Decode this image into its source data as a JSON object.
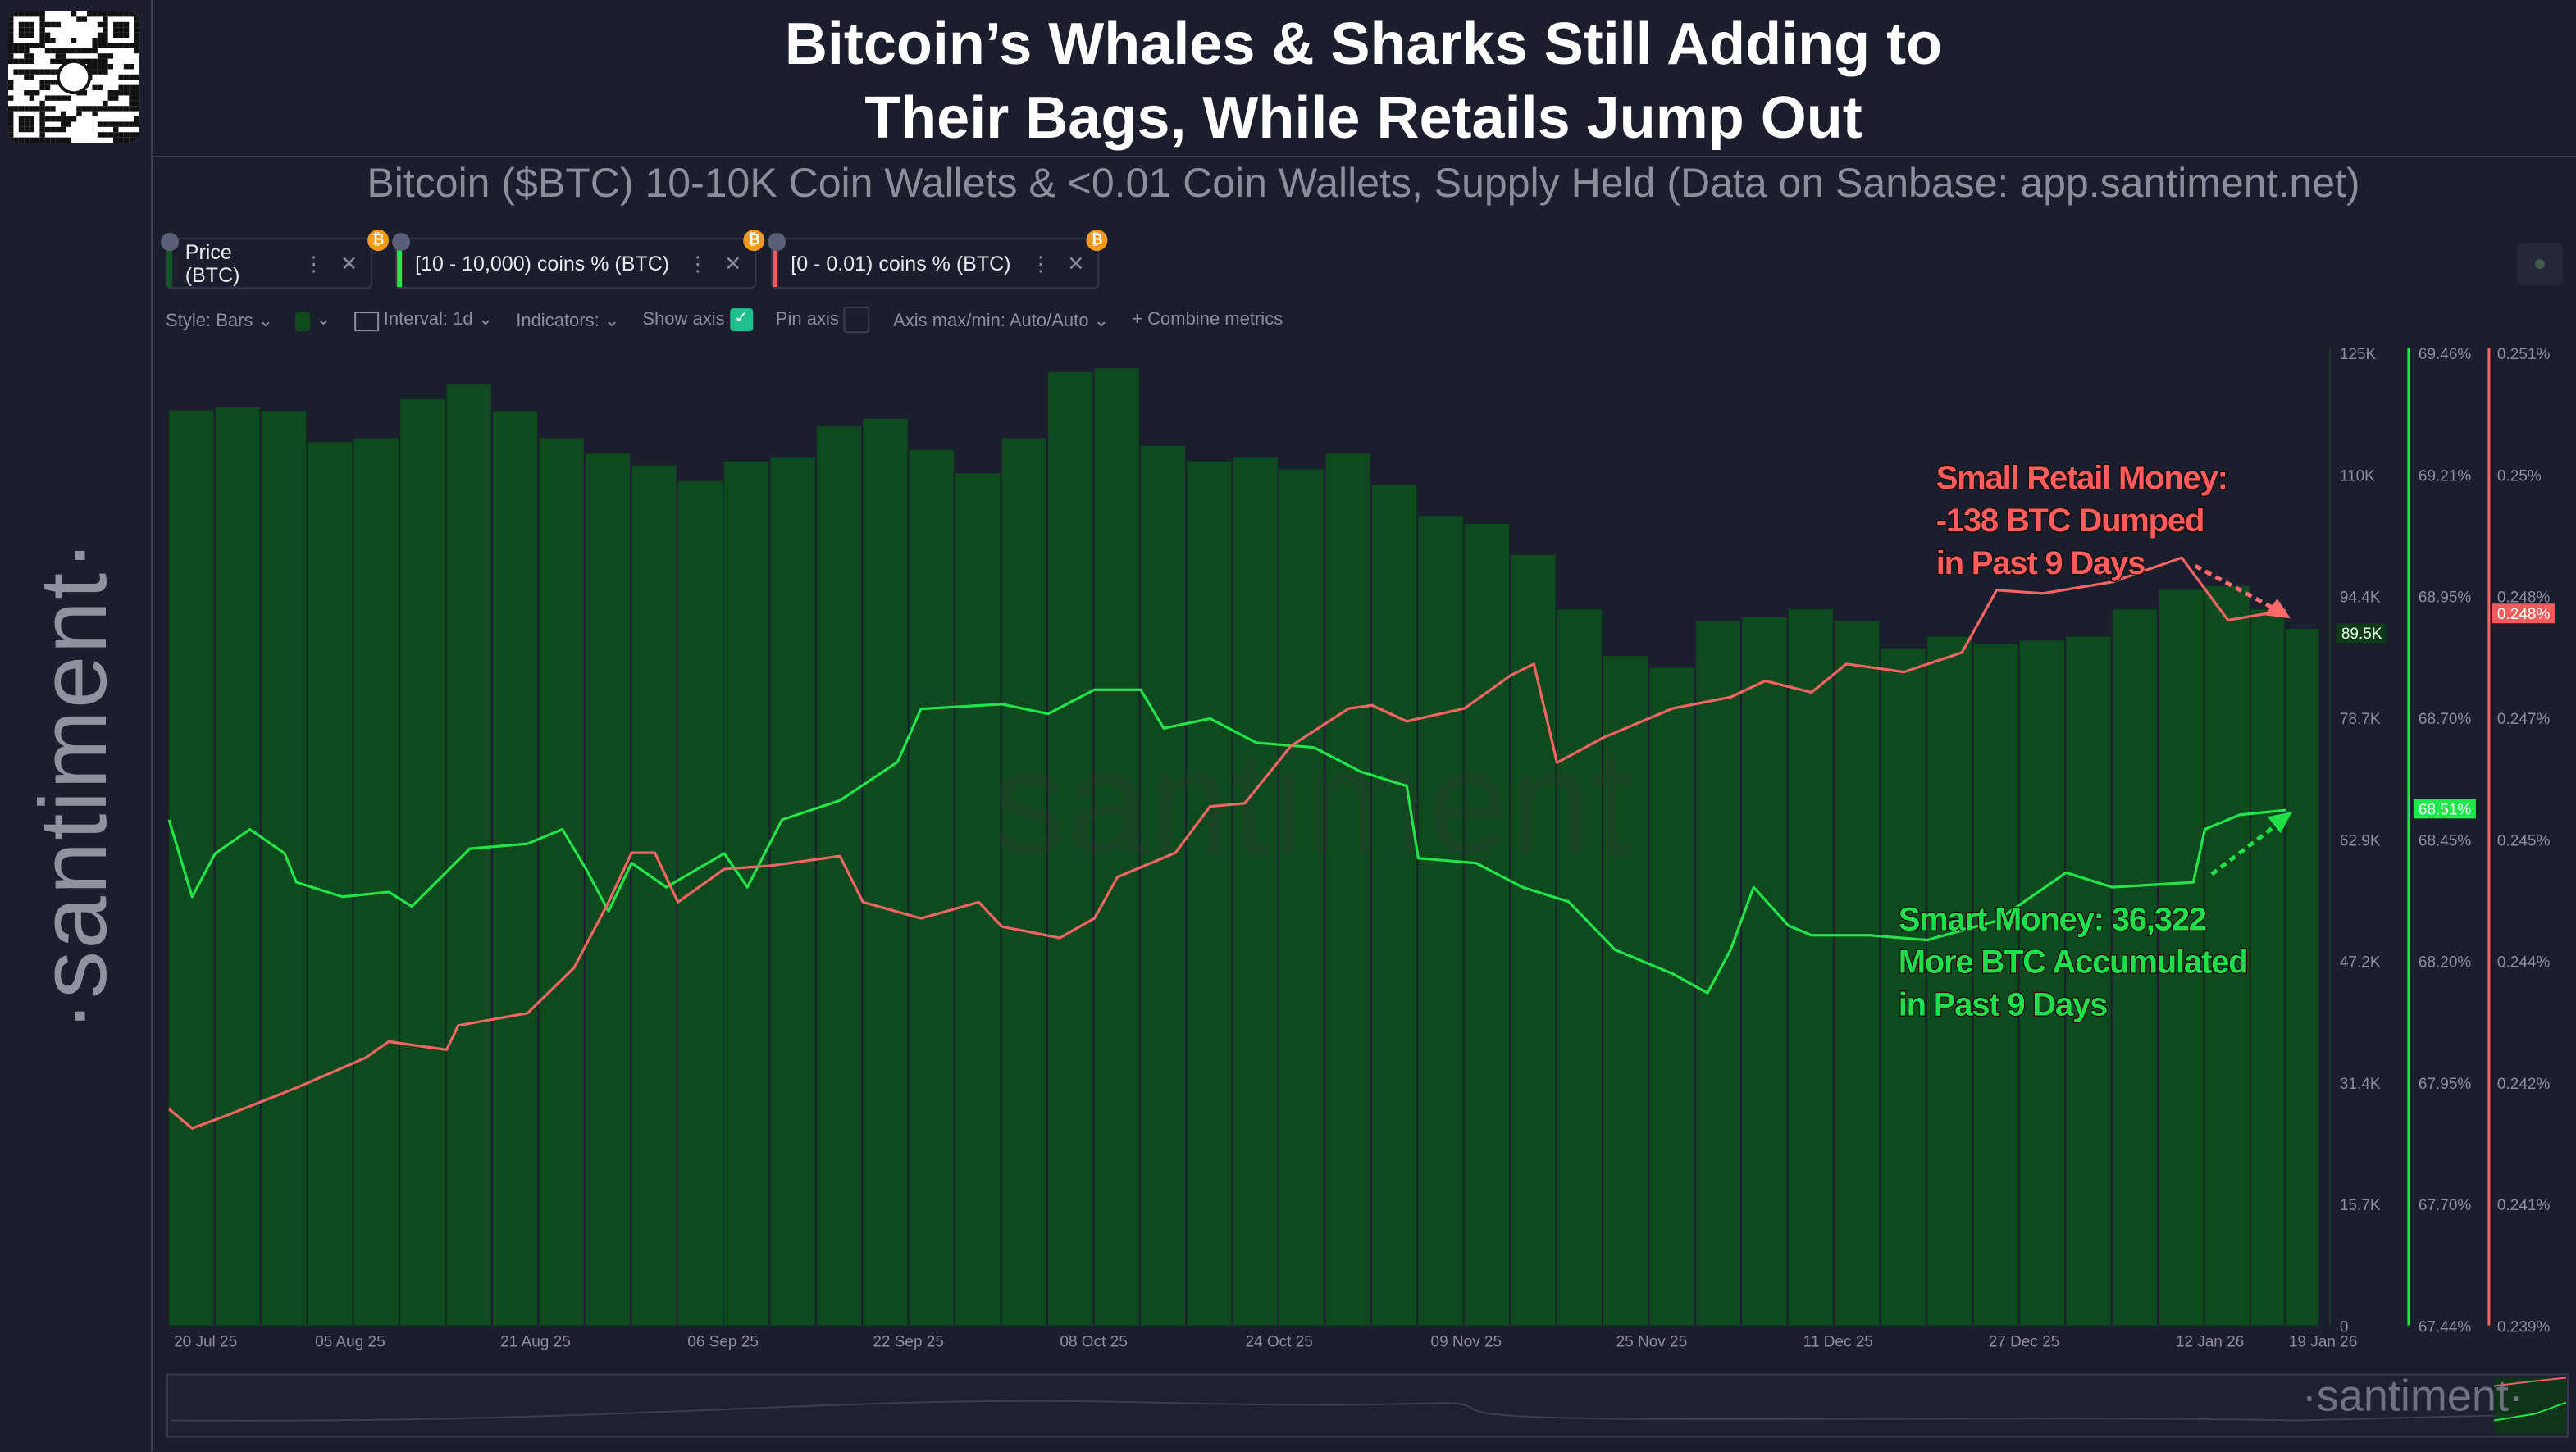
{
  "title_lines": [
    "Bitcoin’s Whales & Sharks Still Adding to",
    "Their Bags, While Retails Jump Out"
  ],
  "subtitle": "Bitcoin ($BTC) 10-10K Coin Wallets & <0.01 Coin Wallets, Supply Held (Data on Sanbase: app.santiment.net)",
  "brand_vertical": "·santiment·",
  "watermark": "·santiment·",
  "metrics": [
    {
      "label": "Price (BTC)",
      "color": "#0f5a22",
      "icon": "bitcoin-icon"
    },
    {
      "label": "[10 - 10,000) coins % (BTC)",
      "color": "#1ee84a",
      "icon": "bitcoin-icon"
    },
    {
      "label": "[0 - 0.01) coins % (BTC)",
      "color": "#f25b5b",
      "icon": "bitcoin-icon"
    }
  ],
  "toolbar": {
    "style": "Style: Bars",
    "interval": "Interval: 1d",
    "indicators": "Indicators:",
    "show_axis": "Show axis",
    "show_axis_checked": true,
    "pin_axis": "Pin axis",
    "pin_axis_checked": false,
    "axis_maxmin": "Axis max/min: Auto/Auto",
    "combine": "Combine metrics"
  },
  "colors": {
    "background": "#1b1e2c",
    "price_bars": "#0e4a1d",
    "whales": "#22e34c",
    "retail": "#f26565"
  },
  "chart_data": {
    "type": "bar+line",
    "x_tick_labels": [
      "20 Jul 25",
      "05 Aug 25",
      "21 Aug 25",
      "06 Sep 25",
      "22 Sep 25",
      "08 Oct 25",
      "24 Oct 25",
      "09 Nov 25",
      "25 Nov 25",
      "11 Dec 25",
      "27 Dec 25",
      "12 Jan 26",
      "19 Jan 26"
    ],
    "axes": {
      "price": {
        "ticks": [
          "125K",
          "110K",
          "94.4K",
          "78.7K",
          "62.9K",
          "47.2K",
          "31.4K",
          "15.7K",
          "0"
        ],
        "ylim": [
          0,
          125000
        ],
        "current": "89.5K"
      },
      "whales": {
        "ticks": [
          "69.46%",
          "69.21%",
          "68.95%",
          "68.70%",
          "68.45%",
          "68.20%",
          "67.95%",
          "67.70%",
          "67.44%"
        ],
        "ylim": [
          67.44,
          69.46
        ],
        "current": "68.51%"
      },
      "retail": {
        "ticks": [
          "0.251%",
          "0.25%",
          "0.248%",
          "0.247%",
          "0.245%",
          "0.244%",
          "0.242%",
          "0.241%",
          "0.239%"
        ],
        "ylim": [
          0.239,
          0.251
        ],
        "current": "0.248%"
      }
    },
    "series": [
      {
        "name": "Price (BTC)",
        "type": "bar",
        "unit": "USD",
        "x": [
          "2025-07-20",
          "2025-07-24",
          "2025-07-28",
          "2025-08-01",
          "2025-08-05",
          "2025-08-09",
          "2025-08-13",
          "2025-08-17",
          "2025-08-21",
          "2025-08-25",
          "2025-08-29",
          "2025-09-02",
          "2025-09-06",
          "2025-09-10",
          "2025-09-14",
          "2025-09-18",
          "2025-09-22",
          "2025-09-26",
          "2025-09-30",
          "2025-10-04",
          "2025-10-08",
          "2025-10-12",
          "2025-10-16",
          "2025-10-20",
          "2025-10-24",
          "2025-10-28",
          "2025-11-01",
          "2025-11-05",
          "2025-11-09",
          "2025-11-13",
          "2025-11-17",
          "2025-11-21",
          "2025-11-25",
          "2025-11-29",
          "2025-12-03",
          "2025-12-07",
          "2025-12-11",
          "2025-12-15",
          "2025-12-19",
          "2025-12-23",
          "2025-12-27",
          "2025-12-31",
          "2026-01-04",
          "2026-01-08",
          "2026-01-12",
          "2026-01-16",
          "2026-01-19"
        ],
        "y": [
          117600,
          118000,
          117500,
          113500,
          114000,
          119000,
          121000,
          117500,
          114000,
          112000,
          110500,
          108500,
          111000,
          111500,
          115500,
          116500,
          112500,
          109500,
          114000,
          122500,
          123000,
          113000,
          111000,
          111500,
          110000,
          112000,
          108000,
          104000,
          103000,
          99000,
          92000,
          86000,
          84500,
          90500,
          91000,
          92000,
          90500,
          87000,
          88500,
          87500,
          88000,
          88500,
          92000,
          94500,
          95000,
          92000,
          89500
        ]
      },
      {
        "name": "[10 - 10,000) coins % (BTC)",
        "type": "line",
        "unit": "%",
        "x": [
          "2025-07-20",
          "2025-07-22",
          "2025-07-24",
          "2025-07-27",
          "2025-07-30",
          "2025-07-31",
          "2025-08-04",
          "2025-08-08",
          "2025-08-10",
          "2025-08-15",
          "2025-08-20",
          "2025-08-23",
          "2025-08-25",
          "2025-08-27",
          "2025-08-29",
          "2025-09-01",
          "2025-09-06",
          "2025-09-08",
          "2025-09-11",
          "2025-09-16",
          "2025-09-21",
          "2025-09-23",
          "2025-09-30",
          "2025-10-04",
          "2025-10-08",
          "2025-10-12",
          "2025-10-14",
          "2025-10-18",
          "2025-10-22",
          "2025-10-27",
          "2025-10-31",
          "2025-11-04",
          "2025-11-05",
          "2025-11-10",
          "2025-11-14",
          "2025-11-18",
          "2025-11-22",
          "2025-11-27",
          "2025-11-30",
          "2025-12-02",
          "2025-12-04",
          "2025-12-07",
          "2025-12-09",
          "2025-12-14",
          "2025-12-19",
          "2025-12-25",
          "2025-12-31",
          "2026-01-04",
          "2026-01-11",
          "2026-01-12",
          "2026-01-15",
          "2026-01-19"
        ],
        "y": [
          68.49,
          68.33,
          68.42,
          68.47,
          68.42,
          68.36,
          68.33,
          68.34,
          68.31,
          68.43,
          68.44,
          68.47,
          68.39,
          68.3,
          68.4,
          68.35,
          68.42,
          68.35,
          68.49,
          68.53,
          68.61,
          68.72,
          68.73,
          68.71,
          68.76,
          68.76,
          68.68,
          68.7,
          68.65,
          68.64,
          68.59,
          68.56,
          68.41,
          68.4,
          68.35,
          68.32,
          68.22,
          68.17,
          68.13,
          68.22,
          68.35,
          68.27,
          68.25,
          68.25,
          68.24,
          68.28,
          68.38,
          68.35,
          68.36,
          68.47,
          68.5,
          68.51
        ]
      },
      {
        "name": "[0 - 0.01) coins % (BTC)",
        "type": "line",
        "unit": "%",
        "x": [
          "2025-07-20",
          "2025-07-22",
          "2025-07-25",
          "2025-07-31",
          "2025-08-06",
          "2025-08-08",
          "2025-08-13",
          "2025-08-14",
          "2025-08-20",
          "2025-08-24",
          "2025-08-27",
          "2025-08-29",
          "2025-08-31",
          "2025-09-02",
          "2025-09-06",
          "2025-09-10",
          "2025-09-16",
          "2025-09-18",
          "2025-09-23",
          "2025-09-28",
          "2025-09-30",
          "2025-10-05",
          "2025-10-08",
          "2025-10-10",
          "2025-10-15",
          "2025-10-18",
          "2025-10-21",
          "2025-10-25",
          "2025-10-30",
          "2025-11-01",
          "2025-11-04",
          "2025-11-09",
          "2025-11-13",
          "2025-11-15",
          "2025-11-17",
          "2025-11-21",
          "2025-11-27",
          "2025-12-02",
          "2025-12-05",
          "2025-12-09",
          "2025-12-12",
          "2025-12-17",
          "2025-12-22",
          "2025-12-25",
          "2025-12-29",
          "2026-01-04",
          "2026-01-10",
          "2026-01-14",
          "2026-01-19"
        ],
        "y": [
          0.24167,
          0.24143,
          0.24159,
          0.24193,
          0.2423,
          0.2425,
          0.2424,
          0.2427,
          0.24285,
          0.24341,
          0.24422,
          0.24483,
          0.24483,
          0.24422,
          0.24463,
          0.24467,
          0.24479,
          0.24422,
          0.24402,
          0.24422,
          0.24392,
          0.24378,
          0.24402,
          0.24453,
          0.24483,
          0.2454,
          0.24544,
          0.24615,
          0.24661,
          0.24665,
          0.24645,
          0.24661,
          0.24702,
          0.24716,
          0.24594,
          0.24625,
          0.24661,
          0.24675,
          0.24695,
          0.24681,
          0.24716,
          0.24706,
          0.2473,
          0.24807,
          0.24803,
          0.24817,
          0.24847,
          0.2477,
          0.24782
        ]
      }
    ],
    "annotations": {
      "retail": [
        "Small Retail Money:",
        "-138 BTC Dumped",
        "in Past 9 Days"
      ],
      "whales": [
        "Smart Money: 36,322",
        "More BTC Accumulated",
        "in Past 9 Days"
      ]
    },
    "grid": false,
    "legend": "top-left"
  }
}
